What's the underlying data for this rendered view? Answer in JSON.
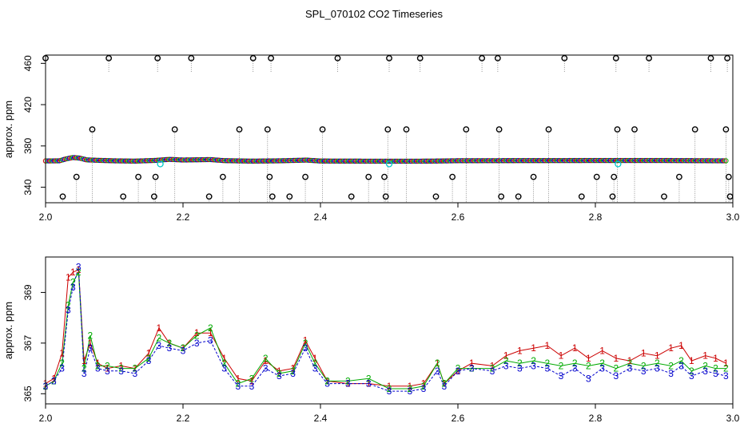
{
  "title": "SPL_070102  CO2 Timeseries",
  "colors": {
    "series_1": "#cc0000",
    "series_2": "#00aa00",
    "series_3": "#0000cc",
    "highlight": "#00cccc",
    "outlier": "#000000",
    "drop_line": "#7f7f7f"
  },
  "chart_data": [
    {
      "type": "scatter",
      "title": "SPL_070102  CO2 Timeseries",
      "xlabel": "",
      "ylabel": "approx. ppm",
      "xlim": [
        2.0,
        3.0
      ],
      "ylim": [
        325,
        468
      ],
      "x_ticks": [
        "2.0",
        "2.2",
        "2.4",
        "2.6",
        "2.8",
        "3.0"
      ],
      "y_ticks": [
        "340",
        "380",
        "420",
        "460"
      ],
      "baseline": [
        [
          2.0,
          365.5
        ],
        [
          2.02,
          365.6
        ],
        [
          2.03,
          367.5
        ],
        [
          2.04,
          368.8
        ],
        [
          2.05,
          368.2
        ],
        [
          2.06,
          366.5
        ],
        [
          2.08,
          366.0
        ],
        [
          2.1,
          365.6
        ],
        [
          2.13,
          365.3
        ],
        [
          2.16,
          366.0
        ],
        [
          2.18,
          367.0
        ],
        [
          2.2,
          366.4
        ],
        [
          2.24,
          366.8
        ],
        [
          2.26,
          365.8
        ],
        [
          2.3,
          365.3
        ],
        [
          2.34,
          365.6
        ],
        [
          2.38,
          366.3
        ],
        [
          2.4,
          365.4
        ],
        [
          2.5,
          365.2
        ],
        [
          2.56,
          365.3
        ],
        [
          2.6,
          365.7
        ],
        [
          2.7,
          365.8
        ],
        [
          2.8,
          365.9
        ],
        [
          2.9,
          365.9
        ],
        [
          2.99,
          365.6
        ]
      ],
      "highlighted": [
        [
          2.167,
          362.5
        ],
        [
          2.5,
          362.5
        ],
        [
          2.833,
          362.5
        ]
      ],
      "outliers": [
        [
          2.0,
          465
        ],
        [
          2.025,
          331
        ],
        [
          2.045,
          350
        ],
        [
          2.068,
          396
        ],
        [
          2.092,
          465
        ],
        [
          2.113,
          331
        ],
        [
          2.135,
          350
        ],
        [
          2.158,
          331
        ],
        [
          2.16,
          350
        ],
        [
          2.163,
          465
        ],
        [
          2.188,
          396
        ],
        [
          2.212,
          465
        ],
        [
          2.238,
          331
        ],
        [
          2.258,
          350
        ],
        [
          2.282,
          396
        ],
        [
          2.302,
          465
        ],
        [
          2.323,
          396
        ],
        [
          2.326,
          350
        ],
        [
          2.328,
          465
        ],
        [
          2.33,
          331
        ],
        [
          2.355,
          331
        ],
        [
          2.378,
          350
        ],
        [
          2.403,
          396
        ],
        [
          2.425,
          465
        ],
        [
          2.445,
          331
        ],
        [
          2.47,
          350
        ],
        [
          2.493,
          350
        ],
        [
          2.495,
          331
        ],
        [
          2.498,
          396
        ],
        [
          2.5,
          465
        ],
        [
          2.525,
          396
        ],
        [
          2.545,
          465
        ],
        [
          2.568,
          331
        ],
        [
          2.592,
          350
        ],
        [
          2.612,
          396
        ],
        [
          2.635,
          465
        ],
        [
          2.658,
          465
        ],
        [
          2.66,
          396
        ],
        [
          2.663,
          331
        ],
        [
          2.688,
          331
        ],
        [
          2.71,
          350
        ],
        [
          2.732,
          396
        ],
        [
          2.755,
          465
        ],
        [
          2.78,
          331
        ],
        [
          2.802,
          350
        ],
        [
          2.825,
          331
        ],
        [
          2.827,
          350
        ],
        [
          2.83,
          465
        ],
        [
          2.832,
          396
        ],
        [
          2.857,
          396
        ],
        [
          2.878,
          465
        ],
        [
          2.9,
          331
        ],
        [
          2.922,
          350
        ],
        [
          2.945,
          396
        ],
        [
          2.968,
          465
        ],
        [
          2.99,
          396
        ],
        [
          2.992,
          465
        ],
        [
          2.994,
          350
        ],
        [
          2.996,
          331
        ]
      ]
    },
    {
      "type": "line",
      "xlabel": "",
      "ylabel": "approx. ppm",
      "xlim": [
        2.0,
        3.0
      ],
      "ylim": [
        364.6,
        370.4
      ],
      "x_ticks": [
        "2.0",
        "2.2",
        "2.4",
        "2.6",
        "2.8",
        "3.0"
      ],
      "y_ticks": [
        "365",
        "367",
        "369"
      ],
      "marker_labels": [
        "1",
        "2",
        "3"
      ],
      "series": [
        {
          "name": "1",
          "values": [
            [
              2.0,
              365.4
            ],
            [
              2.012,
              365.6
            ],
            [
              2.024,
              366.6
            ],
            [
              2.033,
              369.6
            ],
            [
              2.04,
              369.8
            ],
            [
              2.048,
              369.9
            ],
            [
              2.056,
              366.3
            ],
            [
              2.065,
              367.0
            ],
            [
              2.076,
              366.2
            ],
            [
              2.09,
              366.0
            ],
            [
              2.11,
              366.1
            ],
            [
              2.13,
              366.0
            ],
            [
              2.15,
              366.6
            ],
            [
              2.165,
              367.6
            ],
            [
              2.18,
              367.0
            ],
            [
              2.2,
              366.8
            ],
            [
              2.22,
              367.4
            ],
            [
              2.24,
              367.4
            ],
            [
              2.26,
              366.4
            ],
            [
              2.28,
              365.6
            ],
            [
              2.3,
              365.5
            ],
            [
              2.32,
              366.3
            ],
            [
              2.34,
              365.9
            ],
            [
              2.36,
              366.0
            ],
            [
              2.378,
              367.1
            ],
            [
              2.392,
              366.4
            ],
            [
              2.41,
              365.5
            ],
            [
              2.44,
              365.4
            ],
            [
              2.47,
              365.4
            ],
            [
              2.5,
              365.3
            ],
            [
              2.53,
              365.3
            ],
            [
              2.55,
              365.4
            ],
            [
              2.57,
              366.2
            ],
            [
              2.58,
              365.4
            ],
            [
              2.6,
              365.9
            ],
            [
              2.62,
              366.2
            ],
            [
              2.65,
              366.1
            ],
            [
              2.67,
              366.5
            ],
            [
              2.69,
              366.7
            ],
            [
              2.71,
              366.8
            ],
            [
              2.73,
              366.9
            ],
            [
              2.75,
              366.5
            ],
            [
              2.77,
              366.8
            ],
            [
              2.79,
              366.4
            ],
            [
              2.81,
              366.7
            ],
            [
              2.83,
              366.4
            ],
            [
              2.85,
              366.3
            ],
            [
              2.87,
              366.6
            ],
            [
              2.89,
              366.5
            ],
            [
              2.91,
              366.8
            ],
            [
              2.925,
              366.9
            ],
            [
              2.94,
              366.3
            ],
            [
              2.96,
              366.5
            ],
            [
              2.975,
              366.4
            ],
            [
              2.99,
              366.2
            ]
          ]
        },
        {
          "name": "2",
          "values": [
            [
              2.0,
              365.3
            ],
            [
              2.012,
              365.5
            ],
            [
              2.024,
              366.2
            ],
            [
              2.033,
              368.5
            ],
            [
              2.04,
              369.4
            ],
            [
              2.048,
              369.8
            ],
            [
              2.056,
              366.0
            ],
            [
              2.065,
              367.3
            ],
            [
              2.076,
              366.1
            ],
            [
              2.09,
              366.1
            ],
            [
              2.11,
              366.0
            ],
            [
              2.13,
              366.0
            ],
            [
              2.15,
              366.4
            ],
            [
              2.165,
              367.2
            ],
            [
              2.18,
              367.0
            ],
            [
              2.2,
              366.8
            ],
            [
              2.22,
              367.3
            ],
            [
              2.24,
              367.6
            ],
            [
              2.26,
              366.2
            ],
            [
              2.28,
              365.4
            ],
            [
              2.3,
              365.6
            ],
            [
              2.32,
              366.4
            ],
            [
              2.34,
              365.8
            ],
            [
              2.36,
              365.9
            ],
            [
              2.378,
              367.0
            ],
            [
              2.392,
              366.2
            ],
            [
              2.41,
              365.5
            ],
            [
              2.44,
              365.5
            ],
            [
              2.47,
              365.6
            ],
            [
              2.5,
              365.2
            ],
            [
              2.53,
              365.2
            ],
            [
              2.55,
              365.3
            ],
            [
              2.57,
              366.2
            ],
            [
              2.58,
              365.4
            ],
            [
              2.6,
              366.0
            ],
            [
              2.62,
              366.0
            ],
            [
              2.65,
              366.0
            ],
            [
              2.67,
              366.3
            ],
            [
              2.69,
              366.2
            ],
            [
              2.71,
              366.3
            ],
            [
              2.73,
              366.2
            ],
            [
              2.75,
              366.1
            ],
            [
              2.77,
              366.2
            ],
            [
              2.79,
              366.1
            ],
            [
              2.81,
              366.2
            ],
            [
              2.83,
              366.0
            ],
            [
              2.85,
              366.2
            ],
            [
              2.87,
              366.1
            ],
            [
              2.89,
              366.2
            ],
            [
              2.91,
              366.1
            ],
            [
              2.925,
              366.3
            ],
            [
              2.94,
              365.9
            ],
            [
              2.96,
              366.1
            ],
            [
              2.975,
              366.0
            ],
            [
              2.99,
              366.0
            ]
          ]
        },
        {
          "name": "3",
          "values": [
            [
              2.0,
              365.3
            ],
            [
              2.012,
              365.5
            ],
            [
              2.024,
              366.0
            ],
            [
              2.033,
              368.3
            ],
            [
              2.04,
              369.2
            ],
            [
              2.048,
              370.0
            ],
            [
              2.056,
              365.8
            ],
            [
              2.065,
              366.8
            ],
            [
              2.076,
              366.0
            ],
            [
              2.09,
              365.9
            ],
            [
              2.11,
              365.9
            ],
            [
              2.13,
              365.8
            ],
            [
              2.15,
              366.3
            ],
            [
              2.165,
              366.9
            ],
            [
              2.18,
              366.8
            ],
            [
              2.2,
              366.7
            ],
            [
              2.22,
              367.0
            ],
            [
              2.24,
              367.1
            ],
            [
              2.26,
              366.0
            ],
            [
              2.28,
              365.3
            ],
            [
              2.3,
              365.3
            ],
            [
              2.32,
              366.0
            ],
            [
              2.34,
              365.7
            ],
            [
              2.36,
              365.8
            ],
            [
              2.378,
              366.8
            ],
            [
              2.392,
              366.0
            ],
            [
              2.41,
              365.4
            ],
            [
              2.44,
              365.4
            ],
            [
              2.47,
              365.4
            ],
            [
              2.5,
              365.1
            ],
            [
              2.53,
              365.1
            ],
            [
              2.55,
              365.2
            ],
            [
              2.57,
              365.9
            ],
            [
              2.58,
              365.3
            ],
            [
              2.6,
              365.9
            ],
            [
              2.62,
              366.0
            ],
            [
              2.65,
              365.9
            ],
            [
              2.67,
              366.1
            ],
            [
              2.69,
              366.0
            ],
            [
              2.71,
              366.1
            ],
            [
              2.73,
              366.0
            ],
            [
              2.75,
              365.7
            ],
            [
              2.77,
              366.0
            ],
            [
              2.79,
              365.6
            ],
            [
              2.81,
              366.0
            ],
            [
              2.83,
              365.7
            ],
            [
              2.85,
              366.0
            ],
            [
              2.87,
              365.9
            ],
            [
              2.89,
              366.0
            ],
            [
              2.91,
              365.8
            ],
            [
              2.925,
              366.1
            ],
            [
              2.94,
              365.7
            ],
            [
              2.96,
              365.9
            ],
            [
              2.975,
              365.8
            ],
            [
              2.99,
              365.7
            ]
          ]
        }
      ]
    }
  ]
}
